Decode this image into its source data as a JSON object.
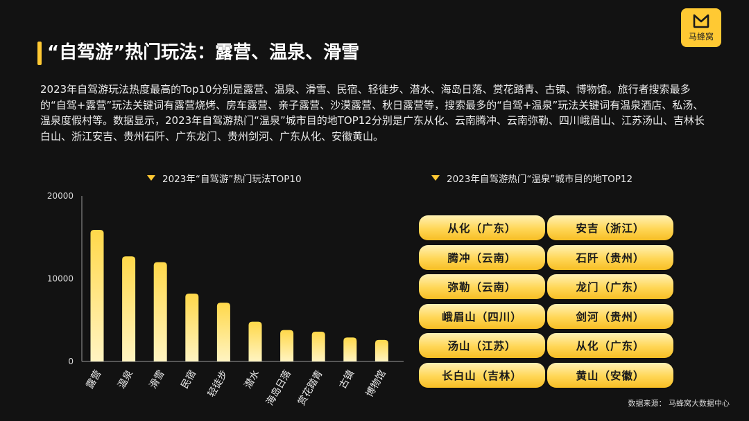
{
  "logo": {
    "name": "马蜂窝",
    "icon": "mafengwo-m-icon"
  },
  "title": "“自驾游”热门玩法：露营、温泉、滑雪",
  "description": "2023年自驾游玩法热度最高的Top10分别是露营、温泉、滑雪、民宿、轻徒步、潜水、海岛日落、赏花踏青、古镇、博物馆。旅行者搜索最多的“自驾+露营”玩法关键词有露营烧烤、房车露营、亲子露营、沙漠露营、秋日露营等，搜索最多的“自驾+温泉”玩法关键词有温泉酒店、私汤、温泉度假村等。数据显示，2023年自驾游热门“温泉”城市目的地TOP12分别是广东从化、云南腾冲、云南弥勒、四川峨眉山、江苏汤山、吉林长白山、浙江安吉、贵州石阡、广东龙门、贵州剑河、广东从化、安徽黄山。",
  "colors": {
    "accent": "#ffc933",
    "background": "#121212"
  },
  "chart_data": [
    {
      "type": "bar",
      "title": "2023年“自驾游”热门玩法TOP10",
      "categories": [
        "露营",
        "温泉",
        "滑雪",
        "民宿",
        "轻徒步",
        "潜水",
        "海岛日落",
        "赏花踏青",
        "古镇",
        "博物馆"
      ],
      "values": [
        15900,
        12700,
        12000,
        8200,
        7100,
        4800,
        3800,
        3600,
        2900,
        2600
      ],
      "ylim": [
        0,
        20000
      ],
      "yticks": [
        "0",
        "10000",
        "20000"
      ],
      "ytick_values": [
        0,
        10000,
        20000
      ],
      "xlabel": "",
      "ylabel": "",
      "grid": false
    },
    {
      "type": "table",
      "title": "2023年自驾游热门“温泉”城市目的地TOP12",
      "columns": [
        [
          "从化（广东）",
          "腾冲（云南）",
          "弥勒（云南）",
          "峨眉山（四川）",
          "汤山（江苏）",
          "长白山（吉林）"
        ],
        [
          "安吉（浙江）",
          "石阡（贵州）",
          "龙门（广东）",
          "剑河（贵州）",
          "从化（广东）",
          "黄山（安徽）"
        ]
      ]
    }
  ],
  "source": "数据来源：  马蜂窝大数据中心"
}
